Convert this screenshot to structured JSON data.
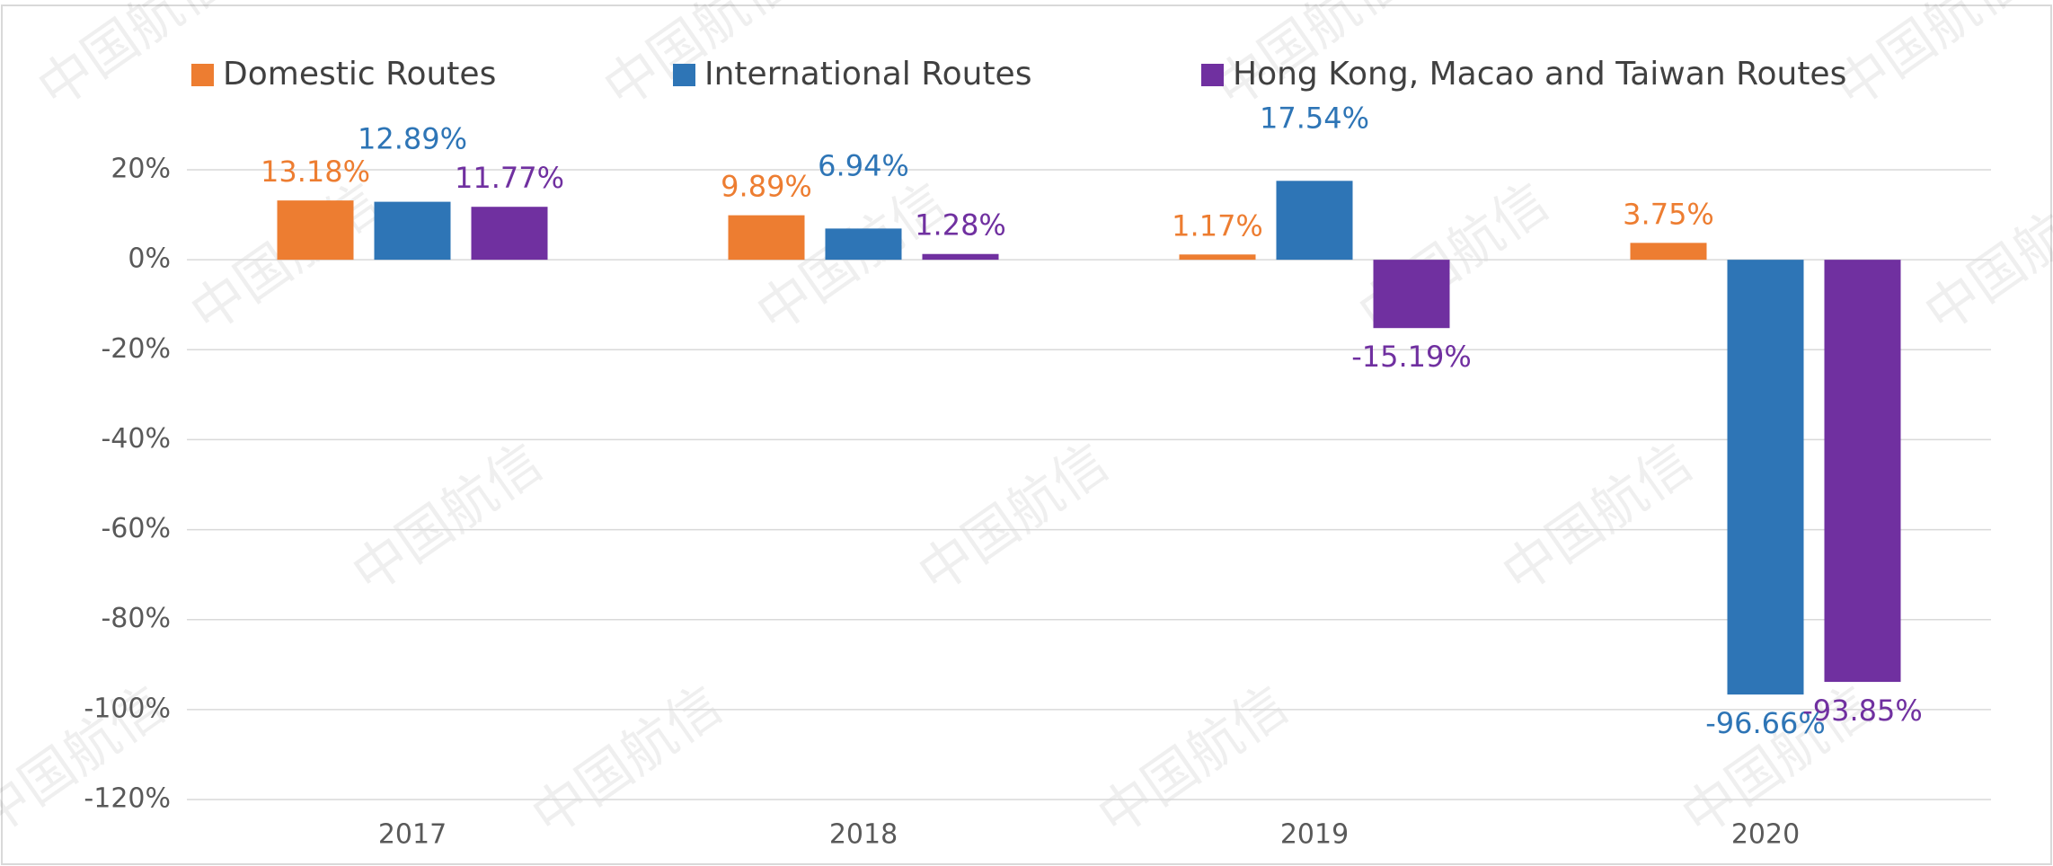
{
  "chart_data": {
    "type": "bar",
    "watermark": "中国航信",
    "categories": [
      "2017",
      "2018",
      "2019",
      "2020"
    ],
    "series": [
      {
        "name": "Domestic Routes",
        "color": "#ED7D31",
        "values": [
          13.18,
          9.89,
          1.17,
          3.75
        ],
        "value_labels": [
          "13.18%",
          "9.89%",
          "1.17%",
          "3.75%"
        ]
      },
      {
        "name": "International Routes",
        "color": "#2E75B6",
        "values": [
          12.89,
          6.94,
          17.54,
          -96.66
        ],
        "value_labels": [
          "12.89%",
          "6.94%",
          "17.54%",
          "-96.66%"
        ]
      },
      {
        "name": "Hong Kong, Macao and Taiwan Routes",
        "color": "#7030A0",
        "values": [
          11.77,
          1.28,
          -15.19,
          -93.85
        ],
        "value_labels": [
          "11.77%",
          "1.28%",
          "-15.19%",
          "-93.85%"
        ]
      }
    ],
    "ylim": [
      -120,
      20
    ],
    "yticks": [
      {
        "value": -120,
        "label": "-120%"
      },
      {
        "value": -100,
        "label": "-100%"
      },
      {
        "value": -80,
        "label": "-80%"
      },
      {
        "value": -60,
        "label": "-60%"
      },
      {
        "value": -40,
        "label": "-40%"
      },
      {
        "value": -20,
        "label": "-20%"
      },
      {
        "value": 0,
        "label": "0%"
      },
      {
        "value": 20,
        "label": "20%"
      }
    ],
    "grid": true,
    "legend": "top"
  }
}
